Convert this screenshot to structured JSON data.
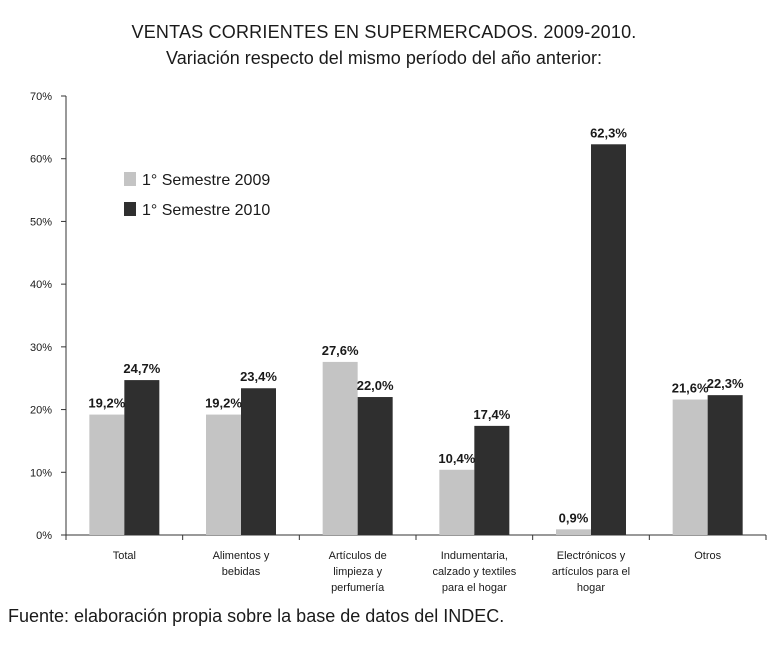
{
  "chart_data": {
    "type": "bar",
    "title": "VENTAS CORRIENTES EN SUPERMERCADOS. 2009-2010.",
    "subtitle": "Variación respecto del mismo período del año anterior:",
    "categories": [
      [
        "Total"
      ],
      [
        "Alimentos y",
        "bebidas"
      ],
      [
        "Artículos  de",
        "limpieza y",
        "perfumería"
      ],
      [
        "Indumentaria,",
        "calzado  y textiles",
        "para el hogar"
      ],
      [
        "Electrónicos y",
        "artículos para el",
        "hogar"
      ],
      [
        "Otros"
      ]
    ],
    "series": [
      {
        "name": "1° Semestre 2009",
        "color": "#c4c4c4",
        "values": [
          19.2,
          19.2,
          27.6,
          10.4,
          0.9,
          21.6
        ],
        "labels": [
          "19,2%",
          "19,2%",
          "27,6%",
          "10,4%",
          "0,9%",
          "21,6%"
        ]
      },
      {
        "name": "1° Semestre 2010",
        "color": "#2f2f2f",
        "values": [
          24.7,
          23.4,
          22.0,
          17.4,
          62.3,
          22.3
        ],
        "labels": [
          "24,7%",
          "23,4%",
          "22,0%",
          "17,4%",
          "62,3%",
          "22,3%"
        ]
      }
    ],
    "ylim": [
      0,
      70
    ],
    "yticks": [
      "0%",
      "10%",
      "20%",
      "30%",
      "40%",
      "50%",
      "60%",
      "70%"
    ],
    "legend_position": "top-left",
    "grid": false
  },
  "source": "Fuente: elaboración propia sobre la base de datos del INDEC."
}
